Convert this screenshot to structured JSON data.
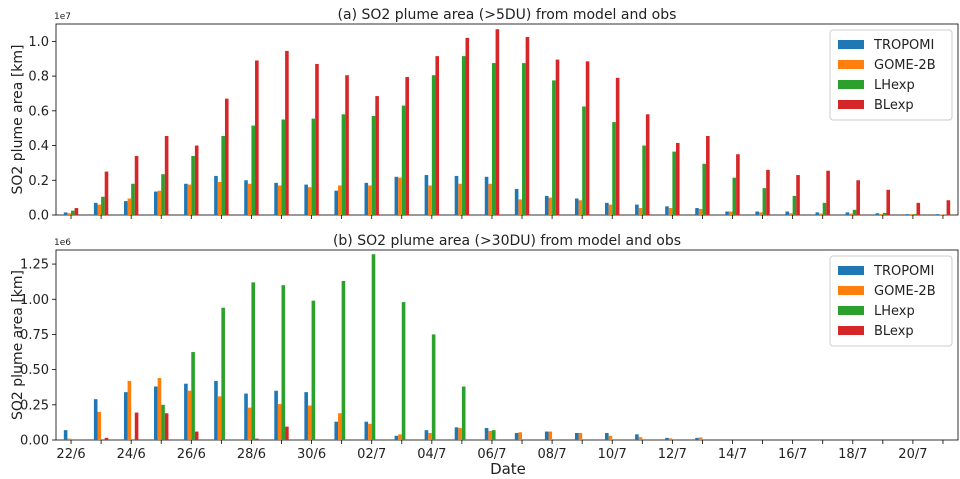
{
  "colors": {
    "TROPOMI": "#1f77b4",
    "GOME-2B": "#ff7f0e",
    "LHexp": "#2ca02c",
    "BLexp": "#d62728"
  },
  "shared_xlabel": "Date",
  "chart_data": [
    {
      "type": "bar",
      "title": "(a) SO2 plume area (>5DU) from model and obs",
      "ylabel": "SO2 plume area [km]",
      "offset_label": "1e7",
      "ylim": [
        0,
        11000000
      ],
      "yticks": [
        0,
        2000000,
        4000000,
        6000000,
        8000000,
        10000000
      ],
      "ytick_labels": [
        "0.0",
        "0.2",
        "0.4",
        "0.6",
        "0.8",
        "1.0"
      ],
      "legend_position": "top-right",
      "categories": [
        "22/6",
        "23/6",
        "24/6",
        "25/6",
        "26/6",
        "27/6",
        "28/6",
        "29/6",
        "30/6",
        "01/7",
        "02/7",
        "03/7",
        "04/7",
        "05/7",
        "06/7",
        "07/7",
        "08/7",
        "09/7",
        "10/7",
        "11/7",
        "12/7",
        "13/7",
        "14/7",
        "15/7",
        "16/7",
        "17/7",
        "18/7",
        "19/7",
        "20/7",
        "21/7"
      ],
      "series": [
        {
          "name": "TROPOMI",
          "values": [
            150000,
            700000,
            800000,
            1350000,
            1800000,
            2250000,
            2000000,
            1850000,
            1750000,
            1400000,
            1850000,
            2200000,
            2300000,
            2250000,
            2200000,
            1500000,
            1100000,
            950000,
            700000,
            600000,
            500000,
            400000,
            200000,
            200000,
            200000,
            150000,
            150000,
            100000,
            50000,
            50000
          ]
        },
        {
          "name": "GOME-2B",
          "values": [
            100000,
            600000,
            950000,
            1400000,
            1750000,
            1900000,
            1800000,
            1700000,
            1600000,
            1700000,
            1700000,
            2150000,
            1700000,
            1800000,
            1800000,
            900000,
            1000000,
            850000,
            600000,
            400000,
            400000,
            350000,
            200000,
            150000,
            100000,
            80000,
            80000,
            50000,
            50000,
            30000
          ]
        },
        {
          "name": "LHexp",
          "values": [
            250000,
            1050000,
            1800000,
            2350000,
            3400000,
            4550000,
            5150000,
            5500000,
            5550000,
            5800000,
            5700000,
            6300000,
            8050000,
            9150000,
            8750000,
            8750000,
            7750000,
            6250000,
            5350000,
            4000000,
            3650000,
            2950000,
            2150000,
            1550000,
            1100000,
            700000,
            300000,
            120000,
            50000,
            20000
          ]
        },
        {
          "name": "BLexp",
          "values": [
            400000,
            2500000,
            3400000,
            4550000,
            4000000,
            6700000,
            8900000,
            9450000,
            8700000,
            8050000,
            6850000,
            7950000,
            9150000,
            10200000,
            10700000,
            10250000,
            8950000,
            8850000,
            7900000,
            5800000,
            4150000,
            4550000,
            3500000,
            2600000,
            2300000,
            2550000,
            2000000,
            1450000,
            700000,
            850000
          ]
        }
      ]
    },
    {
      "type": "bar",
      "title": "(b) SO2 plume area (>30DU) from model and obs",
      "ylabel": "SO2 plume area [km]",
      "offset_label": "1e6",
      "ylim": [
        0,
        1350000
      ],
      "yticks": [
        0,
        250000,
        500000,
        750000,
        1000000,
        1250000
      ],
      "ytick_labels": [
        "0.00",
        "0.25",
        "0.50",
        "0.75",
        "1.00",
        "1.25"
      ],
      "xtick_labels": [
        "22/6",
        "24/6",
        "26/6",
        "28/6",
        "30/6",
        "02/7",
        "04/7",
        "06/7",
        "08/7",
        "10/7",
        "12/7",
        "14/7",
        "16/7",
        "18/7",
        "20/7"
      ],
      "xtick_every": 2,
      "xlabel": "Date",
      "legend_position": "top-right",
      "categories": [
        "22/6",
        "23/6",
        "24/6",
        "25/6",
        "26/6",
        "27/6",
        "28/6",
        "29/6",
        "30/6",
        "01/7",
        "02/7",
        "03/7",
        "04/7",
        "05/7",
        "06/7",
        "07/7",
        "08/7",
        "09/7",
        "10/7",
        "11/7",
        "12/7",
        "13/7",
        "14/7",
        "15/7",
        "16/7",
        "17/7",
        "18/7",
        "19/7",
        "20/7",
        "21/7"
      ],
      "series": [
        {
          "name": "TROPOMI",
          "values": [
            70000,
            290000,
            340000,
            380000,
            400000,
            420000,
            330000,
            350000,
            340000,
            130000,
            130000,
            30000,
            70000,
            90000,
            85000,
            50000,
            60000,
            50000,
            50000,
            40000,
            15000,
            15000,
            0,
            0,
            0,
            0,
            0,
            0,
            0,
            0
          ]
        },
        {
          "name": "GOME-2B",
          "values": [
            10000,
            200000,
            420000,
            440000,
            350000,
            310000,
            230000,
            255000,
            245000,
            190000,
            115000,
            40000,
            50000,
            85000,
            65000,
            55000,
            60000,
            50000,
            30000,
            20000,
            12000,
            18000,
            0,
            0,
            0,
            0,
            0,
            0,
            0,
            0
          ]
        },
        {
          "name": "LHexp",
          "values": [
            0,
            0,
            0,
            250000,
            625000,
            940000,
            1120000,
            1100000,
            990000,
            1130000,
            1320000,
            980000,
            750000,
            380000,
            70000,
            0,
            0,
            0,
            0,
            0,
            0,
            0,
            0,
            0,
            0,
            0,
            0,
            0,
            0,
            0
          ]
        },
        {
          "name": "BLexp",
          "values": [
            0,
            15000,
            195000,
            190000,
            60000,
            0,
            10000,
            95000,
            0,
            0,
            0,
            0,
            0,
            0,
            0,
            0,
            0,
            0,
            0,
            0,
            0,
            0,
            0,
            0,
            0,
            0,
            0,
            0,
            0,
            0
          ]
        }
      ]
    }
  ]
}
